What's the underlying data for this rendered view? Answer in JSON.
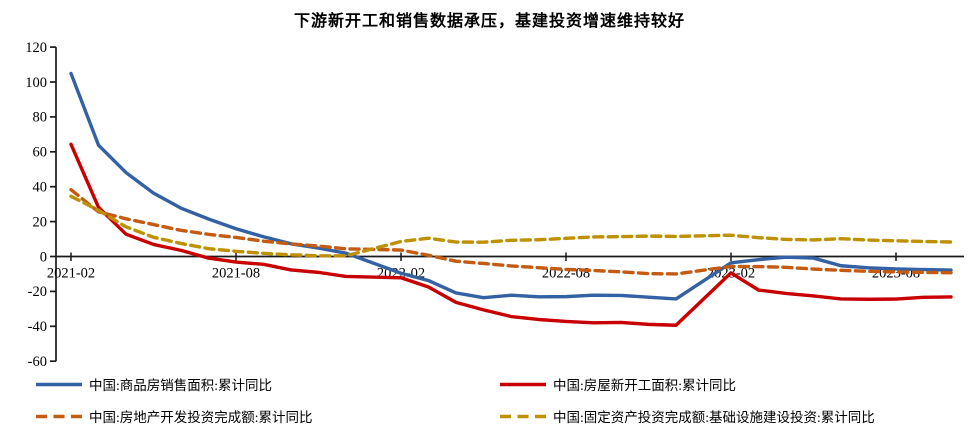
{
  "header": {
    "title": "下游新开工和销售数据承压，基建投资增速维持较好"
  },
  "chart_data": {
    "type": "line",
    "title": "下游新开工和销售数据承压，基建投资增速维持较好",
    "xlabel": "",
    "ylabel": "",
    "ylim": [
      -60,
      120
    ],
    "ytick_step": 20,
    "yticks": [
      120,
      100,
      80,
      60,
      40,
      20,
      0,
      -20,
      -40,
      -60
    ],
    "xticks": [
      "2021-02",
      "2021-08",
      "2022-02",
      "2022-08",
      "2023-02",
      "2023-08"
    ],
    "grid": false,
    "legend_position": "bottom",
    "axis_color": "#1a1a1a",
    "label_color": "#000000",
    "x": [
      "2021-02",
      "2021-03",
      "2021-04",
      "2021-05",
      "2021-06",
      "2021-07",
      "2021-08",
      "2021-09",
      "2021-10",
      "2021-11",
      "2021-12",
      "2022-02",
      "2022-03",
      "2022-04",
      "2022-05",
      "2022-06",
      "2022-07",
      "2022-08",
      "2022-09",
      "2022-10",
      "2022-11",
      "2022-12",
      "2023-02",
      "2023-03",
      "2023-04",
      "2023-05",
      "2023-06",
      "2023-07",
      "2023-08",
      "2023-09",
      "2023-10"
    ],
    "series": [
      {
        "name": "中国:商品房销售面积:累计同比",
        "color": "#3361A4",
        "line_style": "solid",
        "values": [
          104.9,
          63.8,
          48.1,
          36.3,
          27.7,
          21.5,
          15.9,
          11.3,
          7.3,
          4.8,
          1.9,
          -9.6,
          -13.8,
          -20.9,
          -23.6,
          -22.2,
          -23.1,
          -23.0,
          -22.2,
          -22.3,
          -23.3,
          -24.3,
          -3.6,
          -1.8,
          -0.4,
          -0.9,
          -5.3,
          -6.5,
          -7.1,
          -7.5,
          -7.8
        ]
      },
      {
        "name": "中国:房屋新开工面积:累计同比",
        "color": "#C80000",
        "line_style": "solid",
        "values": [
          64.3,
          28.2,
          12.8,
          6.9,
          3.5,
          -0.9,
          -3.2,
          -4.5,
          -7.7,
          -9.1,
          -11.4,
          -12.2,
          -17.5,
          -26.3,
          -30.6,
          -34.4,
          -36.1,
          -37.2,
          -38.0,
          -37.8,
          -38.9,
          -39.4,
          -9.4,
          -19.2,
          -21.2,
          -22.6,
          -24.3,
          -24.5,
          -24.4,
          -23.4,
          -23.2
        ]
      },
      {
        "name": "中国:房地产开发投资完成额:累计同比",
        "color": "#C55A11",
        "line_style": "dashed",
        "values": [
          38.3,
          25.6,
          21.6,
          18.3,
          15.0,
          12.7,
          10.9,
          8.8,
          7.2,
          6.0,
          4.4,
          3.7,
          0.7,
          -2.7,
          -4.0,
          -5.4,
          -6.4,
          -7.4,
          -8.0,
          -8.8,
          -9.8,
          -10.0,
          -5.7,
          -5.8,
          -6.2,
          -7.2,
          -7.9,
          -8.5,
          -8.8,
          -9.1,
          -9.3
        ]
      },
      {
        "name": "中国:固定资产投资完成额:基础设施建设投资:累计同比",
        "color": "#BF9000",
        "line_style": "dashed",
        "values": [
          34.5,
          26.5,
          17.0,
          11.0,
          7.5,
          4.5,
          3.0,
          1.8,
          1.0,
          0.4,
          0.4,
          8.6,
          10.5,
          8.3,
          8.2,
          9.3,
          9.6,
          10.4,
          11.2,
          11.4,
          11.7,
          11.5,
          12.2,
          10.8,
          9.8,
          9.5,
          10.2,
          9.4,
          9.0,
          8.6,
          8.3
        ]
      }
    ]
  }
}
